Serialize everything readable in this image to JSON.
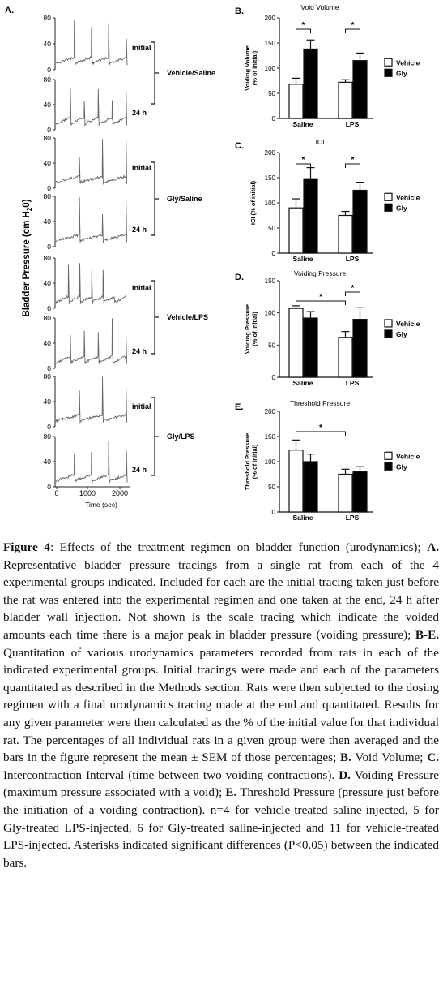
{
  "panel_a": {
    "letter": "A.",
    "ylabel": "Bladder Pressure (cm H",
    "ylabel_sub": "2",
    "ylabel_end": "0)",
    "xlabel": "Time (sec)",
    "x_ticks": [
      "0",
      "1000",
      "2000"
    ],
    "y_ticks": [
      "0",
      "40",
      "80"
    ],
    "trace_labels": [
      "initial",
      "24 h"
    ],
    "groups": [
      "Vehicle/Saline",
      "Gly/Saline",
      "Vehicle/LPS",
      "Gly/LPS"
    ]
  },
  "chart_data": [
    {
      "type": "bar",
      "panel": "B.",
      "title": "Void Volume",
      "ylabel": "Voiding Volume (% of initial)",
      "ylabel_lines": [
        "Voiding Volume",
        "(% of initial)"
      ],
      "categories": [
        "Saline",
        "LPS"
      ],
      "ylim": [
        0,
        200
      ],
      "yticks": [
        0,
        50,
        100,
        150,
        200
      ],
      "series": [
        {
          "name": "Vehicle",
          "values": [
            68,
            72
          ],
          "errors": [
            12,
            5
          ]
        },
        {
          "name": "Gly",
          "values": [
            138,
            115
          ],
          "errors": [
            18,
            15
          ]
        }
      ],
      "significance": [
        {
          "label": "*",
          "group": "Saline"
        },
        {
          "label": "*",
          "group": "LPS"
        }
      ]
    },
    {
      "type": "bar",
      "panel": "C.",
      "title": "ICI",
      "ylabel": "ICI (% of initial)",
      "ylabel_lines": [
        "ICI (% of initial)"
      ],
      "categories": [
        "Saline",
        "LPS"
      ],
      "ylim": [
        0,
        200
      ],
      "yticks": [
        0,
        50,
        100,
        150,
        200
      ],
      "series": [
        {
          "name": "Vehicle",
          "values": [
            90,
            75
          ],
          "errors": [
            18,
            8
          ]
        },
        {
          "name": "Gly",
          "values": [
            148,
            125
          ],
          "errors": [
            22,
            16
          ]
        }
      ],
      "significance": [
        {
          "label": "*",
          "group": "Saline"
        },
        {
          "label": "*",
          "group": "LPS"
        }
      ]
    },
    {
      "type": "bar",
      "panel": "D.",
      "title": "Voiding Pressure",
      "ylabel": "Voiding Pressure (% of initial)",
      "ylabel_lines": [
        "Voiding Pressure",
        "(% of initial)"
      ],
      "categories": [
        "Saline",
        "LPS"
      ],
      "ylim": [
        0,
        150
      ],
      "yticks": [
        0,
        50,
        100,
        150
      ],
      "series": [
        {
          "name": "Vehicle",
          "values": [
            107,
            62
          ],
          "errors": [
            4,
            9
          ]
        },
        {
          "name": "Gly",
          "values": [
            92,
            90
          ],
          "errors": [
            10,
            18
          ]
        }
      ],
      "significance": [
        {
          "label": "*",
          "span": "Saline Vehicle vs LPS Vehicle"
        },
        {
          "label": "*",
          "group": "LPS"
        }
      ]
    },
    {
      "type": "bar",
      "panel": "E.",
      "title": "Threshold Pressure",
      "ylabel": "Threshold Pressure (% of initial)",
      "ylabel_lines": [
        "Threshold Pressure",
        "(% of initial)"
      ],
      "categories": [
        "Saline",
        "LPS"
      ],
      "ylim": [
        0,
        200
      ],
      "yticks": [
        0,
        50,
        100,
        150,
        200
      ],
      "series": [
        {
          "name": "Vehicle",
          "values": [
            123,
            75
          ],
          "errors": [
            20,
            10
          ]
        },
        {
          "name": "Gly",
          "values": [
            100,
            80
          ],
          "errors": [
            15,
            10
          ]
        }
      ],
      "significance": [
        {
          "label": "*",
          "span": "Saline Vehicle vs LPS Vehicle"
        }
      ]
    }
  ],
  "caption": {
    "label": "Figure 4",
    "s1": ": Effects of the treatment regimen on bladder function (urodynamics); ",
    "a_label": "A.",
    "s2": " Representative bladder pressure tracings from a single rat from each of the 4 experimental groups indicated. Included for each are the initial tracing taken just before the rat was entered into the experimental regimen and one taken at the end, 24 h after bladder wall injection. Not shown is the scale tracing which indicate the voided amounts each time there is a major peak in bladder pressure (voiding pressure); ",
    "be_label": "B-E.",
    "s3": " Quantitation of various urodynamics parameters recorded from rats in each of the indicated experimental groups. Initial tracings were made and each of the parameters quantitated as described in the Methods section. Rats were then subjected to the dosing regimen with a final urodynamics tracing made at the end and quantitated. Results for any given parameter were then calculated as the % of the initial value for that individual rat. The percentages of all individual rats in a given group were then averaged and the bars in the figure represent the mean ± SEM of those percentages; ",
    "b_label": "B.",
    "s4": " Void Volume; ",
    "c_label": "C.",
    "s5": " Intercontraction Interval (time between two voiding contractions). ",
    "d_label": "D.",
    "s6": " Voiding Pressure (maximum pressure associated with a void); ",
    "e_label": "E.",
    "s7": " Threshold Pressure (pressure just before the initiation of a voiding contraction). n=4 for vehicle-treated saline-injected, 5 for Gly-treated LPS-injected, 6 for Gly-treated saline-injected and 11 for vehicle-treated LPS-injected. Asterisks indicated significant differences (P<0.05) between the indicated bars."
  }
}
